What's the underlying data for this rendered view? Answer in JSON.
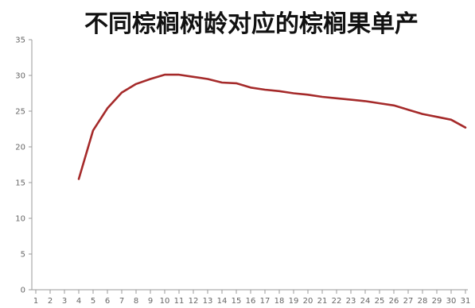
{
  "chart_data": {
    "type": "line",
    "title": "不同棕榈树龄对应的棕榈果单产",
    "xlabel": "",
    "ylabel": "",
    "x_categories": [
      "1",
      "2",
      "3",
      "4",
      "5",
      "6",
      "7",
      "8",
      "9",
      "10",
      "11",
      "12",
      "13",
      "14",
      "15",
      "16",
      "17",
      "18",
      "19",
      "20",
      "21",
      "22",
      "23",
      "24",
      "25",
      "26",
      "27",
      "28",
      "29",
      "30",
      "31"
    ],
    "y_ticks": [
      0,
      5,
      10,
      15,
      20,
      25,
      30,
      35
    ],
    "ylim": [
      0,
      35
    ],
    "grid": false,
    "legend": "none",
    "series": [
      {
        "color": "#a52a2a",
        "points": [
          {
            "x": 4,
            "y": 15.5
          },
          {
            "x": 5,
            "y": 22.3
          },
          {
            "x": 6,
            "y": 25.4
          },
          {
            "x": 7,
            "y": 27.6
          },
          {
            "x": 8,
            "y": 28.8
          },
          {
            "x": 9,
            "y": 29.5
          },
          {
            "x": 10,
            "y": 30.1
          },
          {
            "x": 11,
            "y": 30.1
          },
          {
            "x": 12,
            "y": 29.8
          },
          {
            "x": 13,
            "y": 29.5
          },
          {
            "x": 14,
            "y": 29.0
          },
          {
            "x": 15,
            "y": 28.9
          },
          {
            "x": 16,
            "y": 28.3
          },
          {
            "x": 17,
            "y": 28.0
          },
          {
            "x": 18,
            "y": 27.8
          },
          {
            "x": 19,
            "y": 27.5
          },
          {
            "x": 20,
            "y": 27.3
          },
          {
            "x": 21,
            "y": 27.0
          },
          {
            "x": 22,
            "y": 26.8
          },
          {
            "x": 23,
            "y": 26.6
          },
          {
            "x": 24,
            "y": 26.4
          },
          {
            "x": 25,
            "y": 26.1
          },
          {
            "x": 26,
            "y": 25.8
          },
          {
            "x": 27,
            "y": 25.2
          },
          {
            "x": 28,
            "y": 24.6
          },
          {
            "x": 29,
            "y": 24.2
          },
          {
            "x": 30,
            "y": 23.8
          },
          {
            "x": 31,
            "y": 22.7
          }
        ]
      }
    ]
  }
}
